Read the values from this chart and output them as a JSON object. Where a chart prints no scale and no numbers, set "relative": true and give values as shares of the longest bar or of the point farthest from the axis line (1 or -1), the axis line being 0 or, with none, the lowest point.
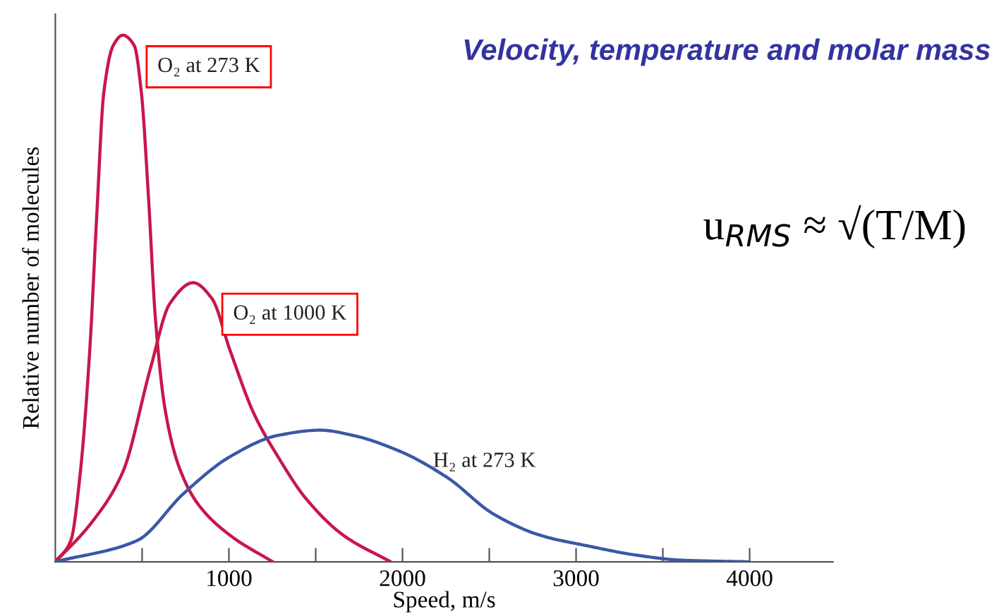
{
  "chart_data": {
    "type": "line",
    "title": "Velocity, temperature and molar mass",
    "xlabel": "Speed, m/s",
    "ylabel": "Relative number of molecules",
    "relative": true,
    "legend": false,
    "grid": false,
    "marker": "none",
    "line_style": "solid",
    "xlim": [
      0,
      4480
    ],
    "xticks": [
      {
        "value": 500,
        "label": null
      },
      1000,
      {
        "value": 1500,
        "label": null
      },
      2000,
      {
        "value": 2500,
        "label": null
      },
      3000,
      {
        "value": 3500,
        "label": null
      },
      4000
    ],
    "annotations": [
      "u$_{RMS}$ ≈ √(T/M)"
    ],
    "series": [
      {
        "name": "O₂ at 273 K",
        "color": "#c8174a",
        "x": [
          0,
          89,
          144,
          198,
          239,
          279,
          333,
          388,
          455,
          496,
          537,
          577,
          632,
          713,
          821,
          1008,
          1252
        ],
        "values": [
          0,
          0.04,
          0.17,
          0.4,
          0.66,
          0.89,
          0.98,
          1.0,
          0.98,
          0.89,
          0.69,
          0.46,
          0.29,
          0.18,
          0.11,
          0.05,
          0
        ]
      },
      {
        "name": "O₂ at 1000 K",
        "color": "#c8174a",
        "x": [
          0,
          198,
          388,
          550,
          659,
          794,
          902,
          1008,
          1146,
          1282,
          1444,
          1661,
          1932
        ],
        "values": [
          0,
          0.07,
          0.17,
          0.37,
          0.49,
          0.53,
          0.5,
          0.4,
          0.28,
          0.2,
          0.12,
          0.05,
          0
        ]
      },
      {
        "name": "H₂ at 273 K",
        "color": "#3a58a8",
        "x": [
          0,
          469,
          740,
          1008,
          1282,
          1526,
          1715,
          1984,
          2258,
          2528,
          2797,
          3070,
          3341,
          3610,
          3990
        ],
        "values": [
          0,
          0.04,
          0.13,
          0.2,
          0.24,
          0.25,
          0.24,
          0.21,
          0.16,
          0.09,
          0.05,
          0.03,
          0.013,
          0.003,
          0
        ]
      }
    ]
  }
}
